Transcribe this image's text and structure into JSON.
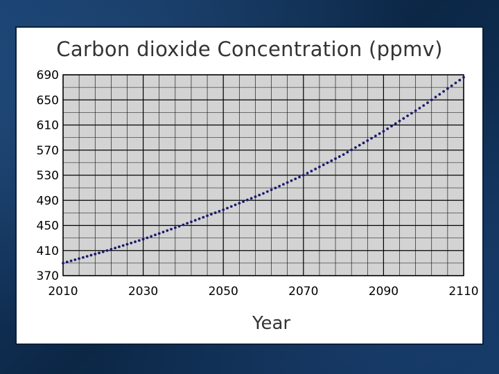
{
  "chart_data": {
    "type": "scatter",
    "title": "Carbon dioxide Concentration (ppmv)",
    "xlabel": "Year",
    "ylabel": "",
    "xlim": [
      2010,
      2110
    ],
    "ylim": [
      370,
      690
    ],
    "x_ticks": [
      2010,
      2030,
      2050,
      2070,
      2090,
      2110
    ],
    "y_ticks": [
      370,
      410,
      450,
      490,
      530,
      570,
      610,
      650,
      690
    ],
    "grid": true,
    "series": [
      {
        "marker_color": "#1a1a6e",
        "points": [
          [
            2010,
            390
          ],
          [
            2020,
            408
          ],
          [
            2030,
            428
          ],
          [
            2040,
            451
          ],
          [
            2050,
            475
          ],
          [
            2060,
            501
          ],
          [
            2070,
            530
          ],
          [
            2080,
            563
          ],
          [
            2090,
            600
          ],
          [
            2100,
            641
          ],
          [
            2110,
            686
          ]
        ]
      }
    ]
  },
  "colors": {
    "plot_background": "#d3d3d3",
    "grid_line": "#000000",
    "marker": "#1a1a6e"
  }
}
